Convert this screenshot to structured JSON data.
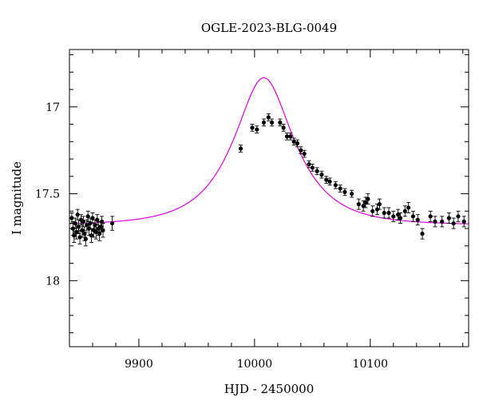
{
  "chart_data": {
    "type": "scatter",
    "title": "OGLE-2023-BLG-0049",
    "xlabel": "HJD - 2450000",
    "ylabel": "I magnitude",
    "xlim": [
      9840,
      10185
    ],
    "ylim": [
      18.38,
      16.67
    ],
    "y_inverted": true,
    "grid": false,
    "x_major_ticks": [
      9900,
      10000,
      10100
    ],
    "y_major_ticks": [
      17,
      17.5,
      18
    ],
    "colors": {
      "points": "#000000",
      "model": "#e000e0"
    },
    "model": {
      "t0": 10008,
      "tE": 45,
      "u0": 0.5,
      "baseline_mag": 17.68
    },
    "series": [
      {
        "values": [
          [
            9842,
            17.64,
            0.03
          ],
          [
            9843,
            17.7,
            0.04
          ],
          [
            9844,
            17.74,
            0.04
          ],
          [
            9845,
            17.67,
            0.03
          ],
          [
            9846,
            17.72,
            0.04
          ],
          [
            9847,
            17.62,
            0.03
          ],
          [
            9848,
            17.69,
            0.04
          ],
          [
            9849,
            17.75,
            0.04
          ],
          [
            9850,
            17.65,
            0.03
          ],
          [
            9851,
            17.71,
            0.04
          ],
          [
            9852,
            17.66,
            0.03
          ],
          [
            9853,
            17.73,
            0.04
          ],
          [
            9854,
            17.76,
            0.04
          ],
          [
            9855,
            17.68,
            0.03
          ],
          [
            9856,
            17.63,
            0.03
          ],
          [
            9857,
            17.7,
            0.04
          ],
          [
            9858,
            17.67,
            0.03
          ],
          [
            9859,
            17.74,
            0.04
          ],
          [
            9860,
            17.64,
            0.03
          ],
          [
            9861,
            17.71,
            0.04
          ],
          [
            9862,
            17.68,
            0.03
          ],
          [
            9863,
            17.72,
            0.04
          ],
          [
            9864,
            17.65,
            0.03
          ],
          [
            9865,
            17.7,
            0.04
          ],
          [
            9866,
            17.73,
            0.04
          ],
          [
            9867,
            17.69,
            0.03
          ],
          [
            9868,
            17.66,
            0.03
          ],
          [
            9869,
            17.71,
            0.04
          ],
          [
            9877,
            17.67,
            0.04
          ],
          [
            9988,
            17.24,
            0.02
          ],
          [
            9998,
            17.12,
            0.02
          ],
          [
            10002,
            17.13,
            0.02
          ],
          [
            10008,
            17.09,
            0.02
          ],
          [
            10012,
            17.06,
            0.02
          ],
          [
            10015,
            17.09,
            0.02
          ],
          [
            10022,
            17.09,
            0.02
          ],
          [
            10025,
            17.12,
            0.02
          ],
          [
            10028,
            17.17,
            0.02
          ],
          [
            10031,
            17.17,
            0.02
          ],
          [
            10034,
            17.2,
            0.02
          ],
          [
            10037,
            17.21,
            0.02
          ],
          [
            10040,
            17.25,
            0.02
          ],
          [
            10043,
            17.27,
            0.02
          ],
          [
            10047,
            17.33,
            0.02
          ],
          [
            10050,
            17.35,
            0.02
          ],
          [
            10054,
            17.37,
            0.02
          ],
          [
            10058,
            17.39,
            0.02
          ],
          [
            10062,
            17.42,
            0.02
          ],
          [
            10065,
            17.43,
            0.02
          ],
          [
            10070,
            17.45,
            0.02
          ],
          [
            10074,
            17.47,
            0.02
          ],
          [
            10078,
            17.49,
            0.02
          ],
          [
            10084,
            17.5,
            0.02
          ],
          [
            10090,
            17.56,
            0.03
          ],
          [
            10094,
            17.57,
            0.03
          ],
          [
            10096,
            17.55,
            0.03
          ],
          [
            10098,
            17.53,
            0.03
          ],
          [
            10102,
            17.6,
            0.03
          ],
          [
            10106,
            17.59,
            0.03
          ],
          [
            10108,
            17.56,
            0.03
          ],
          [
            10112,
            17.61,
            0.03
          ],
          [
            10116,
            17.61,
            0.03
          ],
          [
            10120,
            17.63,
            0.03
          ],
          [
            10124,
            17.62,
            0.03
          ],
          [
            10126,
            17.64,
            0.03
          ],
          [
            10130,
            17.6,
            0.03
          ],
          [
            10133,
            17.58,
            0.03
          ],
          [
            10137,
            17.63,
            0.03
          ],
          [
            10141,
            17.65,
            0.03
          ],
          [
            10145,
            17.73,
            0.03
          ],
          [
            10152,
            17.63,
            0.03
          ],
          [
            10156,
            17.66,
            0.03
          ],
          [
            10162,
            17.66,
            0.03
          ],
          [
            10168,
            17.64,
            0.03
          ],
          [
            10172,
            17.67,
            0.03
          ],
          [
            10176,
            17.63,
            0.03
          ],
          [
            10181,
            17.66,
            0.03
          ]
        ]
      }
    ]
  }
}
